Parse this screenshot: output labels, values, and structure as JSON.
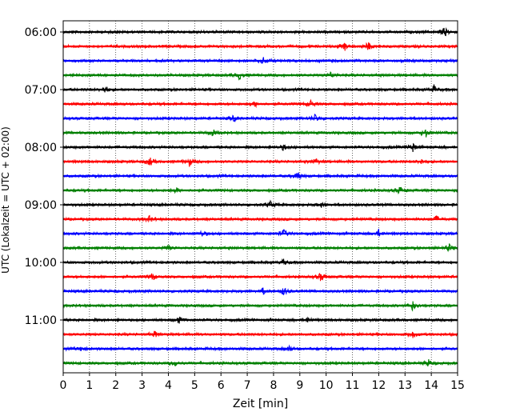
{
  "chart_data": {
    "type": "line",
    "title": "",
    "xlabel": "Zeit  [min]",
    "ylabel": "UTC (Lokalzeit = UTC + 02:00)",
    "xlim": [
      0,
      15
    ],
    "x_ticks": [
      0,
      1,
      2,
      3,
      4,
      5,
      6,
      7,
      8,
      9,
      10,
      11,
      12,
      13,
      14,
      15
    ],
    "x_tick_labels": [
      "0",
      "1",
      "2",
      "3",
      "4",
      "5",
      "6",
      "7",
      "8",
      "9",
      "10",
      "11",
      "12",
      "13",
      "14",
      "15"
    ],
    "y_tick_labels": [
      "06:00",
      "07:00",
      "08:00",
      "09:00",
      "10:00",
      "11:00"
    ],
    "y_tick_rows": [
      0,
      4,
      8,
      12,
      16,
      20
    ],
    "grid": "vertical dotted at each minute",
    "trace_interval_min": 15,
    "start_time": "06:00",
    "colors": [
      "#000000",
      "#ff0000",
      "#0000ff",
      "#008000"
    ],
    "traces": [
      {
        "start": "06:00",
        "color": "#000000",
        "events": [
          {
            "t": 14.5,
            "amp": 6
          }
        ]
      },
      {
        "start": "06:15",
        "color": "#ff0000",
        "events": [
          {
            "t": 10.7,
            "amp": 5
          },
          {
            "t": 11.6,
            "amp": 5
          }
        ]
      },
      {
        "start": "06:30",
        "color": "#0000ff",
        "events": [
          {
            "t": 7.6,
            "amp": 5
          }
        ]
      },
      {
        "start": "06:45",
        "color": "#008000",
        "events": [
          {
            "t": 6.7,
            "amp": 5
          },
          {
            "t": 10.2,
            "amp": 4
          }
        ]
      },
      {
        "start": "07:00",
        "color": "#000000",
        "events": [
          {
            "t": 1.6,
            "amp": 5
          },
          {
            "t": 14.1,
            "amp": 5
          }
        ]
      },
      {
        "start": "07:15",
        "color": "#ff0000",
        "events": [
          {
            "t": 7.3,
            "amp": 3
          },
          {
            "t": 9.4,
            "amp": 5
          }
        ]
      },
      {
        "start": "07:30",
        "color": "#0000ff",
        "events": [
          {
            "t": 6.5,
            "amp": 4
          },
          {
            "t": 9.6,
            "amp": 5
          }
        ]
      },
      {
        "start": "07:45",
        "color": "#008000",
        "events": [
          {
            "t": 5.7,
            "amp": 4
          },
          {
            "t": 13.8,
            "amp": 5
          }
        ]
      },
      {
        "start": "08:00",
        "color": "#000000",
        "events": [
          {
            "t": 8.4,
            "amp": 4
          },
          {
            "t": 13.3,
            "amp": 6
          }
        ]
      },
      {
        "start": "08:15",
        "color": "#ff0000",
        "events": [
          {
            "t": 3.3,
            "amp": 5
          },
          {
            "t": 4.8,
            "amp": 5
          },
          {
            "t": 9.6,
            "amp": 4
          },
          {
            "t": 13.6,
            "amp": 4
          }
        ]
      },
      {
        "start": "08:30",
        "color": "#0000ff",
        "events": [
          {
            "t": 8.9,
            "amp": 5
          }
        ]
      },
      {
        "start": "08:45",
        "color": "#008000",
        "events": [
          {
            "t": 4.3,
            "amp": 3
          },
          {
            "t": 12.8,
            "amp": 5
          }
        ]
      },
      {
        "start": "09:00",
        "color": "#000000",
        "events": [
          {
            "t": 7.9,
            "amp": 4
          },
          {
            "t": 9.8,
            "amp": 3
          }
        ]
      },
      {
        "start": "09:15",
        "color": "#ff0000",
        "events": [
          {
            "t": 3.3,
            "amp": 4
          },
          {
            "t": 14.2,
            "amp": 4
          }
        ]
      },
      {
        "start": "09:30",
        "color": "#0000ff",
        "events": [
          {
            "t": 5.3,
            "amp": 4
          },
          {
            "t": 8.4,
            "amp": 5
          },
          {
            "t": 12.0,
            "amp": 4
          }
        ]
      },
      {
        "start": "09:45",
        "color": "#008000",
        "events": [
          {
            "t": 4.0,
            "amp": 3
          },
          {
            "t": 14.7,
            "amp": 5
          }
        ]
      },
      {
        "start": "10:00",
        "color": "#000000",
        "events": [
          {
            "t": 8.4,
            "amp": 4
          }
        ]
      },
      {
        "start": "10:15",
        "color": "#ff0000",
        "events": [
          {
            "t": 3.4,
            "amp": 5
          },
          {
            "t": 9.8,
            "amp": 5
          }
        ]
      },
      {
        "start": "10:30",
        "color": "#0000ff",
        "events": [
          {
            "t": 7.6,
            "amp": 4
          },
          {
            "t": 8.4,
            "amp": 5
          }
        ]
      },
      {
        "start": "10:45",
        "color": "#008000",
        "events": [
          {
            "t": 13.3,
            "amp": 6
          }
        ]
      },
      {
        "start": "11:00",
        "color": "#000000",
        "events": [
          {
            "t": 4.4,
            "amp": 4
          },
          {
            "t": 9.3,
            "amp": 3
          }
        ]
      },
      {
        "start": "11:15",
        "color": "#ff0000",
        "events": [
          {
            "t": 3.5,
            "amp": 4
          },
          {
            "t": 13.3,
            "amp": 4
          }
        ]
      },
      {
        "start": "11:30",
        "color": "#0000ff",
        "events": [
          {
            "t": 0.7,
            "amp": 3
          },
          {
            "t": 8.6,
            "amp": 4
          }
        ]
      },
      {
        "start": "11:45",
        "color": "#008000",
        "events": [
          {
            "t": 4.3,
            "amp": 4
          },
          {
            "t": 13.9,
            "amp": 4
          }
        ]
      }
    ]
  }
}
